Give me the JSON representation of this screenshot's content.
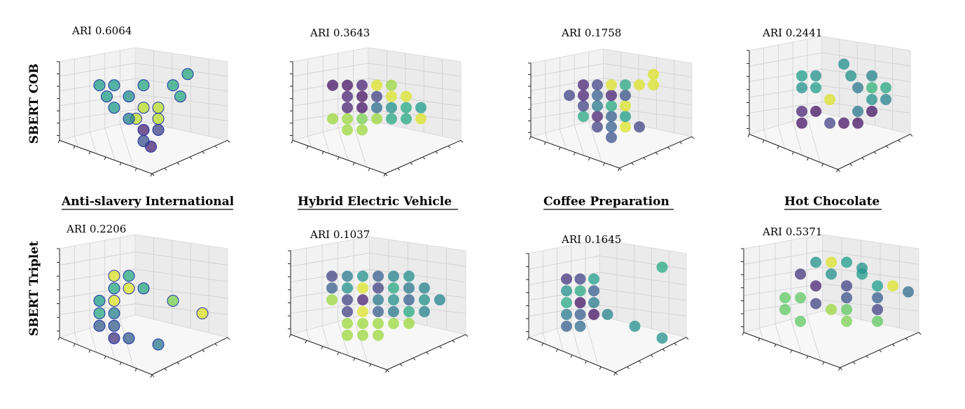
{
  "row_labels": [
    "SBERT COB",
    "SBERT Triplet"
  ],
  "topics": [
    "Anti-slavery International",
    "Hybrid Electric Vehicle",
    "Coffee Preparation",
    "Hot Chocolate"
  ],
  "colormap": "viridis",
  "colors": {
    "dark_purple": "#440154",
    "blue": "#31688e",
    "teal": "#21918c",
    "green": "#5ec962",
    "yellow": "#fde725"
  },
  "chart_data": [
    {
      "type": "scatter",
      "row": "SBERT COB",
      "topic": "Anti-slavery International",
      "ari_label": "ARI 0.6064",
      "points": [
        [
          2,
          6,
          0.55
        ],
        [
          3,
          6,
          0.55
        ],
        [
          2.5,
          5,
          0.55
        ],
        [
          4,
          5,
          0.5
        ],
        [
          3,
          4,
          0.55
        ],
        [
          5,
          6,
          0.6
        ],
        [
          7,
          6,
          0.6
        ],
        [
          8,
          7,
          0.6
        ],
        [
          7.5,
          5,
          0.6
        ],
        [
          5,
          4,
          0.9
        ],
        [
          6,
          4,
          0.9
        ],
        [
          4.5,
          3,
          0.9
        ],
        [
          6,
          3,
          0.9
        ],
        [
          5,
          2,
          0.1
        ],
        [
          6,
          2,
          0.2
        ],
        [
          5,
          1,
          0.25
        ],
        [
          5.5,
          0.5,
          0.1
        ],
        [
          4,
          3,
          0.45
        ]
      ]
    },
    {
      "type": "scatter",
      "row": "SBERT COB",
      "topic": "Hybrid Electric Vehicle",
      "ari_label": "ARI 0.3643",
      "points": [
        [
          2,
          6,
          0.05
        ],
        [
          3,
          6,
          0.05
        ],
        [
          4,
          6,
          0.1
        ],
        [
          3,
          5,
          0.1
        ],
        [
          4,
          5,
          0.05
        ],
        [
          5,
          5,
          0.2
        ],
        [
          6,
          5,
          0.95
        ],
        [
          5,
          6,
          0.95
        ],
        [
          7,
          5,
          0.95
        ],
        [
          7,
          4,
          0.6
        ],
        [
          8,
          4,
          0.55
        ],
        [
          6,
          4,
          0.5
        ],
        [
          5,
          4,
          0.35
        ],
        [
          4,
          4,
          0.05
        ],
        [
          3,
          4,
          0.1
        ],
        [
          2,
          3,
          0.85
        ],
        [
          3,
          3,
          0.85
        ],
        [
          4,
          3,
          0.8
        ],
        [
          5,
          3,
          0.85
        ],
        [
          3,
          2,
          0.85
        ],
        [
          4,
          2,
          0.85
        ],
        [
          6,
          3,
          0.6
        ],
        [
          7,
          3,
          0.6
        ],
        [
          8,
          3,
          0.95
        ],
        [
          6,
          6,
          0.85
        ]
      ]
    },
    {
      "type": "scatter",
      "row": "SBERT COB",
      "topic": "Coffee Preparation",
      "ari_label": "ARI 0.1758",
      "points": [
        [
          3,
          6,
          0.1
        ],
        [
          4,
          6,
          0.2
        ],
        [
          5,
          6,
          0.95
        ],
        [
          6,
          6,
          0.6
        ],
        [
          7,
          6,
          0.95
        ],
        [
          8,
          7,
          0.95
        ],
        [
          8,
          6,
          0.95
        ],
        [
          2,
          5,
          0.2
        ],
        [
          3,
          5,
          0.1
        ],
        [
          4,
          5,
          0.3
        ],
        [
          5,
          5,
          0.1
        ],
        [
          6,
          5,
          0.25
        ],
        [
          3,
          4,
          0.2
        ],
        [
          4,
          4,
          0.4
        ],
        [
          5,
          4,
          0.6
        ],
        [
          6,
          4,
          0.95
        ],
        [
          3,
          3,
          0.6
        ],
        [
          4,
          3,
          0.1
        ],
        [
          5,
          3,
          0.3
        ],
        [
          6,
          3,
          0.55
        ],
        [
          4,
          2,
          0.2
        ],
        [
          5,
          2,
          0.3
        ],
        [
          6,
          2,
          0.95
        ],
        [
          7,
          2,
          0.2
        ],
        [
          5,
          1,
          0.25
        ]
      ]
    },
    {
      "type": "scatter",
      "row": "SBERT COB",
      "topic": "Hot Chocolate",
      "ari_label": "ARI 0.2441",
      "points": [
        [
          3,
          6,
          0.55
        ],
        [
          4,
          6,
          0.5
        ],
        [
          6,
          7,
          0.5
        ],
        [
          6.5,
          6,
          0.5
        ],
        [
          8,
          6,
          0.45
        ],
        [
          3,
          5,
          0.5
        ],
        [
          4,
          5,
          0.55
        ],
        [
          7,
          5,
          0.4
        ],
        [
          8,
          5,
          0.65
        ],
        [
          9,
          5,
          0.6
        ],
        [
          5,
          4,
          0.95
        ],
        [
          8,
          4,
          0.5
        ],
        [
          9,
          4,
          0.45
        ],
        [
          3,
          3,
          0.1
        ],
        [
          4,
          3,
          0.05
        ],
        [
          7,
          3,
          0.4
        ],
        [
          8,
          3,
          0.05
        ],
        [
          3,
          2,
          0.05
        ],
        [
          5,
          2,
          0.2
        ],
        [
          6,
          2,
          0.05
        ],
        [
          7,
          2,
          0.05
        ]
      ]
    },
    {
      "type": "scatter",
      "row": "SBERT Triplet",
      "topic": "Anti-slavery International",
      "ari_label": "ARI 0.2206",
      "points": [
        [
          3,
          6,
          0.95
        ],
        [
          4,
          6,
          0.6
        ],
        [
          3,
          5,
          0.6
        ],
        [
          4,
          5,
          0.95
        ],
        [
          5,
          5,
          0.6
        ],
        [
          3,
          4,
          0.95
        ],
        [
          2,
          4,
          0.55
        ],
        [
          2,
          3,
          0.6
        ],
        [
          3,
          3,
          0.45
        ],
        [
          2,
          2,
          0.3
        ],
        [
          3,
          2,
          0.3
        ],
        [
          3,
          1,
          0.15
        ],
        [
          4,
          1,
          0.3
        ],
        [
          7,
          4,
          0.8
        ],
        [
          9,
          3,
          0.95
        ],
        [
          6,
          0.5,
          0.4
        ]
      ]
    },
    {
      "type": "scatter",
      "row": "SBERT Triplet",
      "topic": "Hybrid Electric Vehicle",
      "ari_label": "ARI 0.1037",
      "points": [
        [
          2,
          6,
          0.2
        ],
        [
          3,
          6,
          0.4
        ],
        [
          4,
          6,
          0.5
        ],
        [
          5,
          6,
          0.3
        ],
        [
          6,
          6,
          0.45
        ],
        [
          7,
          6,
          0.5
        ],
        [
          2,
          5,
          0.3
        ],
        [
          3,
          5,
          0.5
        ],
        [
          4,
          5,
          0.95
        ],
        [
          5,
          5,
          0.2
        ],
        [
          6,
          5,
          0.6
        ],
        [
          7,
          5,
          0.4
        ],
        [
          8,
          5,
          0.45
        ],
        [
          2,
          4,
          0.85
        ],
        [
          3,
          4,
          0.2
        ],
        [
          4,
          4,
          0.1
        ],
        [
          5,
          4,
          0.4
        ],
        [
          6,
          4,
          0.5
        ],
        [
          7,
          4,
          0.3
        ],
        [
          8,
          4,
          0.5
        ],
        [
          9,
          4,
          0.45
        ],
        [
          3,
          3,
          0.2
        ],
        [
          4,
          3,
          0.95
        ],
        [
          5,
          3,
          0.3
        ],
        [
          6,
          3,
          0.4
        ],
        [
          7,
          3,
          0.6
        ],
        [
          8,
          3,
          0.45
        ],
        [
          3,
          2,
          0.85
        ],
        [
          4,
          2,
          0.85
        ],
        [
          5,
          2,
          0.85
        ],
        [
          6,
          2,
          0.85
        ],
        [
          7,
          2,
          0.85
        ],
        [
          3,
          1,
          0.85
        ],
        [
          4,
          1,
          0.85
        ],
        [
          5,
          1,
          0.85
        ]
      ]
    },
    {
      "type": "scatter",
      "row": "SBERT Triplet",
      "topic": "Coffee Preparation",
      "ari_label": "ARI 0.1645",
      "points": [
        [
          2,
          6,
          0.15
        ],
        [
          3,
          6,
          0.2
        ],
        [
          4,
          6,
          0.55
        ],
        [
          2,
          5,
          0.5
        ],
        [
          3,
          5,
          0.6
        ],
        [
          4,
          5,
          0.3
        ],
        [
          2,
          4,
          0.6
        ],
        [
          3,
          4,
          0.05
        ],
        [
          4,
          4,
          0.4
        ],
        [
          2,
          3,
          0.4
        ],
        [
          3,
          3,
          0.3
        ],
        [
          4,
          3,
          0.05
        ],
        [
          5,
          3,
          0.45
        ],
        [
          2,
          2,
          0.3
        ],
        [
          3,
          2,
          0.35
        ],
        [
          9,
          7,
          0.6
        ],
        [
          7,
          2,
          0.5
        ],
        [
          9,
          1,
          0.5
        ]
      ]
    },
    {
      "type": "scatter",
      "row": "SBERT Triplet",
      "topic": "Hot Chocolate",
      "ari_label": "ARI 0.5371",
      "points": [
        [
          4,
          7,
          0.5
        ],
        [
          5,
          7,
          0.95
        ],
        [
          6,
          7,
          0.55
        ],
        [
          7,
          6,
          0.55
        ],
        [
          3,
          6,
          0.15
        ],
        [
          5,
          6,
          0.5
        ],
        [
          7,
          6.5,
          0.5
        ],
        [
          4,
          5,
          0.1
        ],
        [
          6,
          5,
          0.2
        ],
        [
          8,
          5,
          0.55
        ],
        [
          9,
          5,
          0.95
        ],
        [
          10,
          4.5,
          0.35
        ],
        [
          2,
          4,
          0.75
        ],
        [
          3,
          4,
          0.75
        ],
        [
          4,
          3.5,
          0.2
        ],
        [
          6,
          4,
          0.25
        ],
        [
          8,
          4,
          0.3
        ],
        [
          2,
          3,
          0.75
        ],
        [
          5,
          3,
          0.85
        ],
        [
          6,
          3,
          0.75
        ],
        [
          8,
          3,
          0.2
        ],
        [
          3,
          2,
          0.75
        ],
        [
          6,
          2,
          0.8
        ],
        [
          8,
          2,
          0.75
        ]
      ]
    }
  ]
}
